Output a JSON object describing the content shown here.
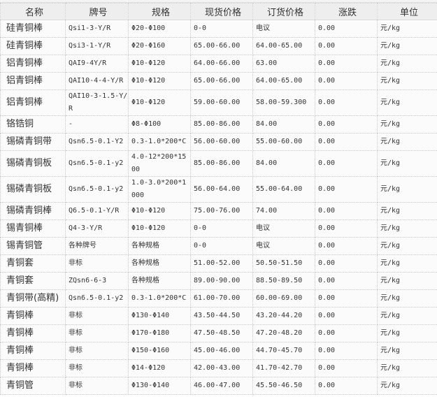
{
  "table": {
    "headers": [
      "名称",
      "牌号",
      "规格",
      "现货价格",
      "订货价格",
      "涨跌",
      "单位"
    ],
    "rows": [
      [
        "硅青铜棒",
        "Qsi1-3-Y/R",
        "Φ20-Φ100",
        "0-0",
        "电议",
        "0.00",
        "元/kg"
      ],
      [
        "硅青铜棒",
        "Qsi3-1-Y/R",
        "Φ20-Φ160",
        "65.00-66.00",
        "64.00-65.00",
        "0.00",
        "元/kg"
      ],
      [
        "铝青铜棒",
        "QAI9-4Y/R",
        "Φ10-Φ120",
        "64.00-66.00",
        "63.00",
        "0.00",
        "元/kg"
      ],
      [
        "铝青铜棒",
        "QAI10-4-4-Y/R",
        "Φ10-Φ120",
        "65.00-66.00",
        "64.00-65.00",
        "0.00",
        "元/kg"
      ],
      [
        "铝青铜棒",
        "QAI10-3-1.5-Y/R",
        "Φ10-Φ120",
        "59.00-60.00",
        "58.00-59.300",
        "0.00",
        "元/kg"
      ],
      [
        "铬锆铜",
        "-",
        "Φ8-Φ100",
        "85.00-86.00",
        "84.00",
        "0.00",
        "元/kg"
      ],
      [
        "锡磷青铜带",
        "Qsn6.5-0.1-Y2",
        "0.3-1.0*200*C",
        "56.00-60.00",
        "55.00-60.00",
        "0.00",
        "元/kg"
      ],
      [
        "锡磷青铜板",
        "Qsn6.5-0.1-y2",
        "4.0-12*200*1500",
        "85.00-86.00",
        "84.00",
        "0.00",
        "元/kg"
      ],
      [
        "锡磷青铜板",
        "Qsn6.5-0.1-y2",
        "1.0-3.0*200*1000",
        "56.00-64.00",
        "55.00-64.00",
        "0.00",
        "元/kg"
      ],
      [
        "锡磷青铜棒",
        "Q6.5-0.1-Y/R",
        "Φ10-Φ120",
        "75.00-76.00",
        "74.00",
        "0.00",
        "元/kg"
      ],
      [
        "锡青铜棒",
        "Q4-3-Y/R",
        "Φ10-Φ120",
        "0-0",
        "电议",
        "0.00",
        "元/kg"
      ],
      [
        "锡青铜管",
        "各种牌号",
        "各种规格",
        "0-0",
        "电议",
        "0.00",
        "元/kg"
      ],
      [
        "青铜套",
        "非标",
        "各种规格",
        "51.00-52.00",
        "50.50-51.50",
        "0.00",
        "元/kg"
      ],
      [
        "青铜套",
        "ZQsn6-6-3",
        "各种规格",
        "89.00-90.00",
        "88.50-89.50",
        "0.00",
        "元/kg"
      ],
      [
        "青铜带(高精)",
        "Qsn6.5-0.1-y2",
        "0.3-1.0*200*C",
        "61.00-70.00",
        "60.00-69.00",
        "0.00",
        "元/kg"
      ],
      [
        "青铜棒",
        "非标",
        "Φ130-Φ140",
        "43.50-44.50",
        "43.20-44.20",
        "0.00",
        "元/kg"
      ],
      [
        "青铜棒",
        "非标",
        "Φ170-Φ180",
        "47.50-48.50",
        "47.20-48.20",
        "0.00",
        "元/kg"
      ],
      [
        "青铜棒",
        "非标",
        "Φ150-Φ160",
        "45.00-46.00",
        "44.70-45.70",
        "0.00",
        "元/kg"
      ],
      [
        "青铜棒",
        "非标",
        "Φ14-Φ120",
        "42.00-43.00",
        "41.70-42.70",
        "0.00",
        "元/kg"
      ],
      [
        "青铜管",
        "非标",
        "Φ130-Φ140",
        "46.00-47.00",
        "45.50-46.50",
        "0.00",
        "元/kg"
      ]
    ]
  }
}
